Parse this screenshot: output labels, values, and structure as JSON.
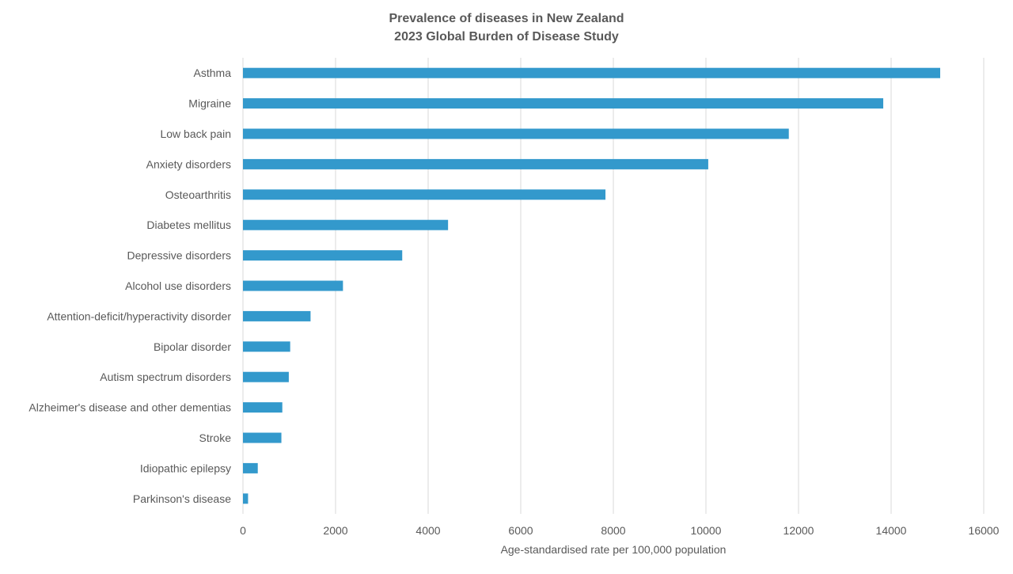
{
  "chart_data": {
    "type": "bar",
    "orientation": "horizontal",
    "title": "Prevalence of diseases in New Zealand",
    "subtitle": "2023 Global Burden of Disease Study",
    "xlabel": "Age-standardised rate per 100,000 population",
    "ylabel": "",
    "xlim": [
      0,
      16000
    ],
    "xticks": [
      0,
      2000,
      4000,
      6000,
      8000,
      10000,
      12000,
      14000,
      16000
    ],
    "grid": true,
    "bar_color": "#3399CC",
    "categories": [
      "Asthma",
      "Migraine",
      "Low back pain",
      "Anxiety disorders",
      "Osteoarthritis",
      "Diabetes mellitus",
      "Depressive disorders",
      "Alcohol use disorders",
      "Attention-deficit/hyperactivity disorder",
      "Bipolar disorder",
      "Autism spectrum disorders",
      "Alzheimer's disease and other dementias",
      "Stroke",
      "Idiopathic epilepsy",
      "Parkinson's disease"
    ],
    "values": [
      15060,
      13830,
      11790,
      10050,
      7830,
      4430,
      3440,
      2160,
      1460,
      1020,
      990,
      850,
      830,
      320,
      110
    ]
  }
}
